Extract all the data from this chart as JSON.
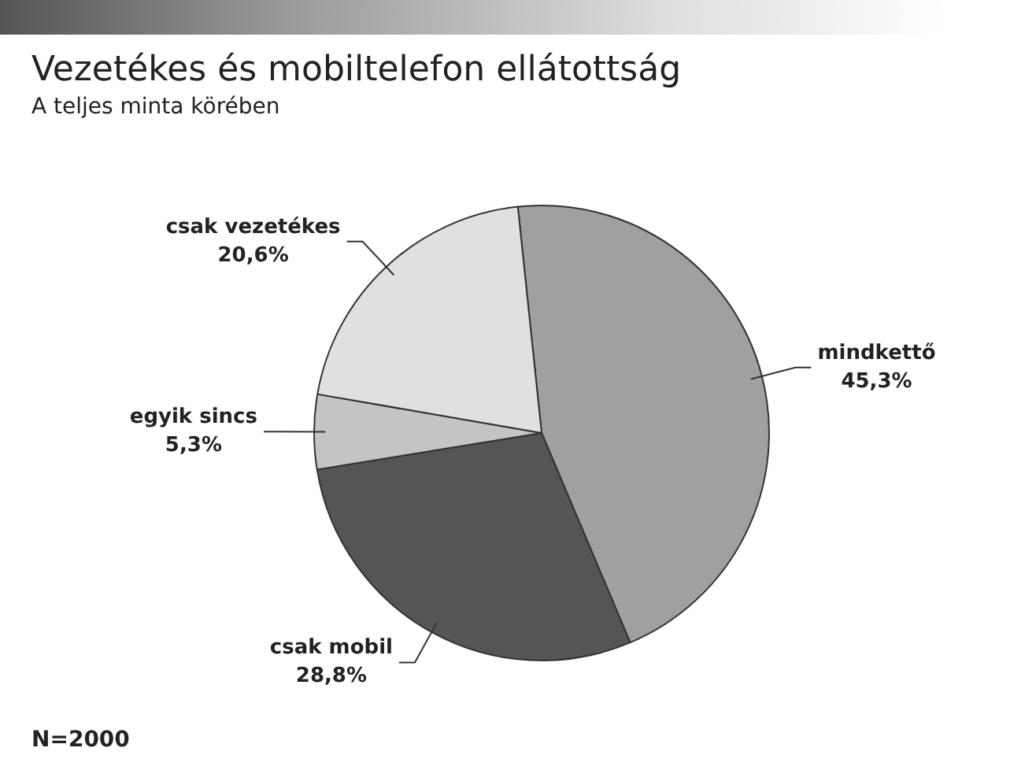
{
  "chart_data": {
    "type": "pie",
    "title": "Vezetékes és mobiltelefon ellátottság",
    "subtitle": "A teljes minta körében",
    "categories": [
      "mindkettő",
      "csak mobil",
      "egyik sincs",
      "csak vezetékes"
    ],
    "values": [
      45.3,
      28.8,
      5.3,
      20.6
    ],
    "colors": [
      "#a0a0a0",
      "#555555",
      "#c4c4c4",
      "#e0e0e0"
    ],
    "value_labels": [
      "45,3%",
      "28,8%",
      "5,3%",
      "20,6%"
    ],
    "legend": false,
    "annotations": [
      "N=2000"
    ]
  }
}
